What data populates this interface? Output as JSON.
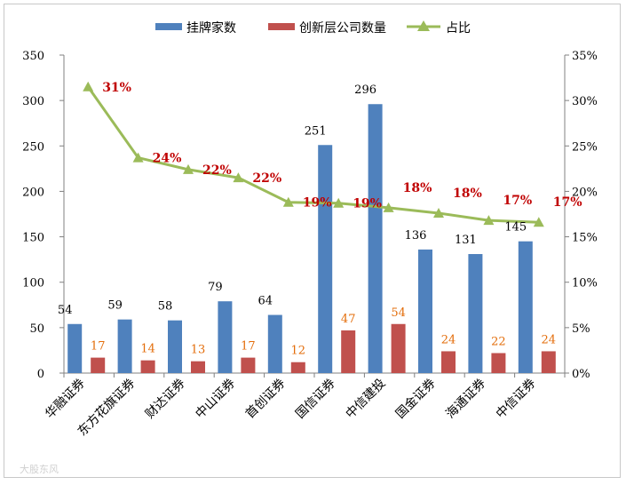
{
  "chart_data": {
    "type": "bar",
    "categories": [
      "华融证券",
      "东方花旗证券",
      "财达证券",
      "中山证券",
      "首创证券",
      "国信证券",
      "中信建投",
      "国金证券",
      "海通证券",
      "中信证券"
    ],
    "series": [
      {
        "name": "挂牌家数",
        "type": "bar",
        "axis": "left",
        "color": "#4f81bd",
        "values": [
          54,
          59,
          58,
          79,
          64,
          251,
          296,
          136,
          131,
          145
        ]
      },
      {
        "name": "创新层公司数量",
        "type": "bar",
        "axis": "left",
        "color": "#c0504d",
        "values": [
          17,
          14,
          13,
          17,
          12,
          47,
          54,
          24,
          22,
          24
        ]
      },
      {
        "name": "占比",
        "type": "line",
        "axis": "right",
        "color": "#9bbb59",
        "values": [
          31.5,
          23.7,
          22.4,
          21.5,
          18.8,
          18.7,
          18.2,
          17.6,
          16.8,
          16.6
        ],
        "labels": [
          "31%",
          "24%",
          "22%",
          "22%",
          "19%",
          "19%",
          "18%",
          "18%",
          "17%",
          "17%"
        ]
      }
    ],
    "y_left": {
      "min": 0,
      "max": 350,
      "step": 50,
      "ticks": [
        "0",
        "50",
        "100",
        "150",
        "200",
        "250",
        "300",
        "350"
      ]
    },
    "y_right": {
      "min": 0,
      "max": 35,
      "step": 5,
      "ticks": [
        "0%",
        "5%",
        "10%",
        "15%",
        "20%",
        "25%",
        "30%",
        "35%"
      ]
    },
    "legend_position": "top",
    "grid": false,
    "label_colors": {
      "bar1": "#000000",
      "bar2": "#e36c09",
      "pct": "#c00000"
    }
  },
  "legend": {
    "bar1": "挂牌家数",
    "bar2": "创新层公司数量",
    "line": "占比"
  },
  "watermark": "大股东风"
}
